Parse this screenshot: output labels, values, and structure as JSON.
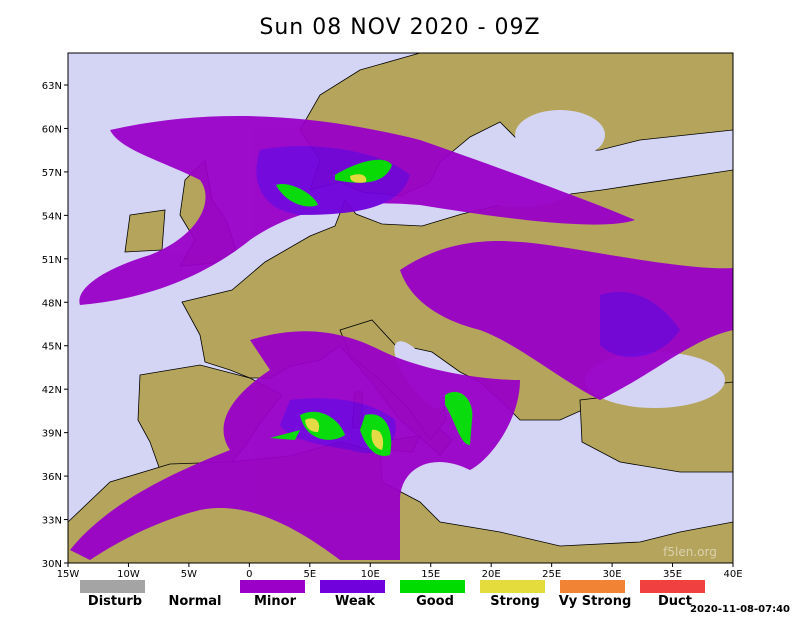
{
  "title": "Sun 08 NOV 2020 - 09Z",
  "lat_labels": [
    "63N",
    "60N",
    "57N",
    "54N",
    "51N",
    "48N",
    "45N",
    "42N",
    "39N",
    "36N",
    "33N",
    "30N"
  ],
  "lon_labels": [
    "15W",
    "10W",
    "5W",
    "0",
    "5E",
    "10E",
    "15E",
    "20E",
    "25E",
    "30E",
    "35E",
    "40E"
  ],
  "legend": [
    {
      "label": "Disturb",
      "color": "#a4a4a4"
    },
    {
      "label": "Normal",
      "color": null
    },
    {
      "label": "Minor",
      "color": "#9a00c8"
    },
    {
      "label": "Weak",
      "color": "#7000dc"
    },
    {
      "label": "Good",
      "color": "#00dc00"
    },
    {
      "label": "Strong",
      "color": "#e4dc3c"
    },
    {
      "label": "Vy Strong",
      "color": "#f08434"
    },
    {
      "label": "Duct",
      "color": "#f04040"
    }
  ],
  "watermark": "f5len.org",
  "timestamp": "2020-11-08-07:40"
}
